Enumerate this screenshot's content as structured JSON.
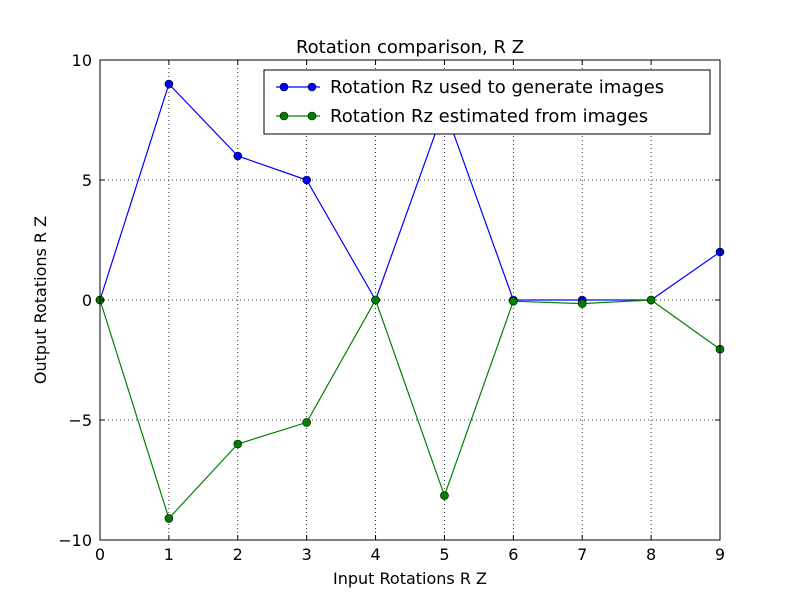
{
  "chart_data": {
    "type": "line",
    "title": "Rotation comparison, R Z",
    "xlabel": "Input Rotations R Z",
    "ylabel": "Output Rotations R Z",
    "xlim": [
      0,
      9
    ],
    "ylim": [
      -10,
      10
    ],
    "xticks": [
      0,
      1,
      2,
      3,
      4,
      5,
      6,
      7,
      8,
      9
    ],
    "yticks": [
      -10,
      -5,
      0,
      5,
      10
    ],
    "grid": true,
    "legend_position": "top-right",
    "x": [
      0,
      1,
      2,
      3,
      4,
      5,
      6,
      7,
      8,
      9
    ],
    "series": [
      {
        "name": "Rotation Rz used to generate images",
        "color": "#0000ff",
        "values": [
          0,
          9,
          6,
          5,
          0,
          8,
          0,
          0,
          0,
          2
        ]
      },
      {
        "name": "Rotation Rz estimated from images",
        "color": "#008000",
        "values": [
          0,
          -9.1,
          -6.0,
          -5.1,
          0,
          -8.15,
          -0.05,
          -0.15,
          0,
          -2.05
        ]
      }
    ]
  }
}
